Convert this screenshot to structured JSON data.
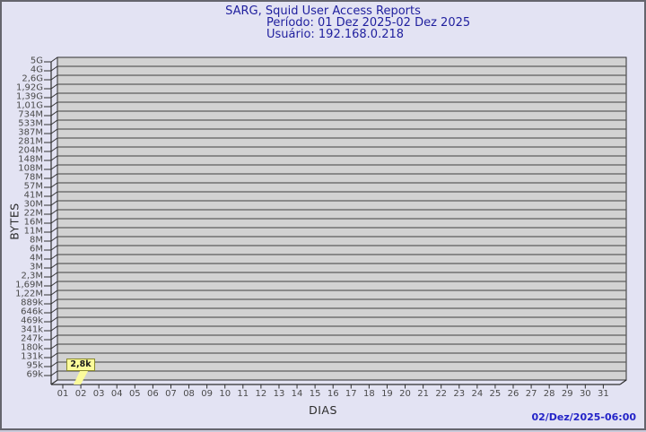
{
  "footer": {
    "generated": "02/Dez/2025-06:00"
  },
  "colors": {
    "background": "#e3e3f3",
    "plot_fill": "#d2d2d2",
    "gridline": "#5e5e5e",
    "axis": "#2f2f2f",
    "title_text": "#1f1f9e",
    "date_text": "#2424c8",
    "tick_text": "#4a4a4a",
    "flag_fill": "#fbfb9b",
    "flag_border": "#8a8a2e"
  },
  "chart_data": {
    "type": "bar",
    "title": "SARG, Squid User Access Reports",
    "subtitle": [
      "Período: 01 Dez 2025-02 Dez 2025",
      "Usuário: 192.168.0.218"
    ],
    "xlabel": "DIAS",
    "ylabel": "BYTES",
    "y_scale": "log",
    "grid": "horizontal",
    "legend": "none",
    "y_tick_labels": [
      "5G",
      "4G",
      "2,6G",
      "1,92G",
      "1,39G",
      "1,01G",
      "734M",
      "533M",
      "387M",
      "281M",
      "204M",
      "148M",
      "108M",
      "78M",
      "57M",
      "41M",
      "30M",
      "22M",
      "16M",
      "11M",
      "8M",
      "6M",
      "4M",
      "3M",
      "2,3M",
      "1,69M",
      "1,22M",
      "889k",
      "646k",
      "469k",
      "341k",
      "247k",
      "180k",
      "131k",
      "95k",
      "69k"
    ],
    "x_tick_labels": [
      "01",
      "02",
      "03",
      "04",
      "05",
      "06",
      "07",
      "08",
      "09",
      "10",
      "11",
      "12",
      "13",
      "14",
      "15",
      "16",
      "17",
      "18",
      "19",
      "20",
      "21",
      "22",
      "23",
      "24",
      "25",
      "26",
      "27",
      "28",
      "29",
      "30",
      "31"
    ],
    "points": [
      {
        "day": "02",
        "label": "2,8k",
        "bytes": 2800
      }
    ]
  }
}
